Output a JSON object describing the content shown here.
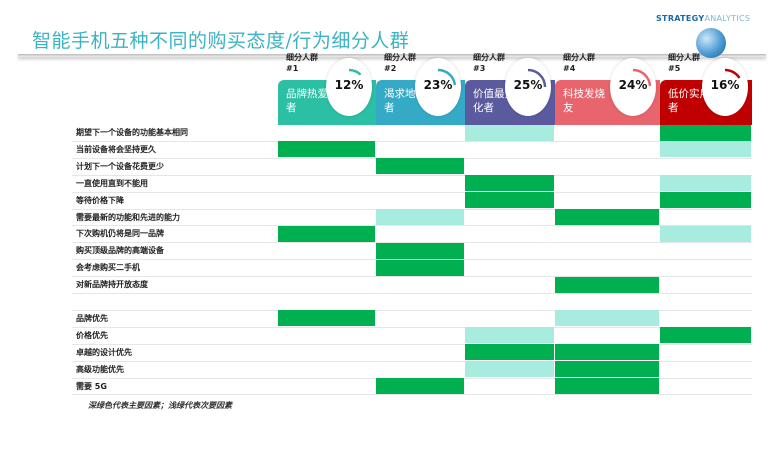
{
  "title": "智能手机五种不同的购买态度/行为细分人群",
  "logo": {
    "part1": "STRATEGY",
    "part2": "ANALYTICS"
  },
  "segments": [
    {
      "label": "细分人群",
      "num": "#1",
      "name": "品牌热爱者",
      "pct": "12%",
      "value": 12,
      "color": "#2bbfa4"
    },
    {
      "label": "细分人群",
      "num": "#2",
      "name": "渴求地位者",
      "pct": "23%",
      "value": 23,
      "color": "#35aac6"
    },
    {
      "label": "细分人群",
      "num": "#3",
      "name": "价值最大化者",
      "pct": "25%",
      "value": 25,
      "color": "#5b5a9f"
    },
    {
      "label": "细分人群",
      "num": "#4",
      "name": "科技发烧友",
      "pct": "24%",
      "value": 24,
      "color": "#e8656d"
    },
    {
      "label": "细分人群",
      "num": "#5",
      "name": "低价实用者",
      "pct": "16%",
      "value": 16,
      "color": "#c00000"
    }
  ],
  "colors": {
    "primary": "#00b050",
    "secondary": "#a8ebdf"
  },
  "rows": [
    {
      "label": "期望下一个设备的功能基本相同",
      "cells": [
        0,
        0,
        1,
        0,
        2
      ]
    },
    {
      "label": "当前设备将会坚持更久",
      "cells": [
        2,
        0,
        0,
        0,
        1
      ]
    },
    {
      "label": "计划下一个设备花费更少",
      "cells": [
        0,
        2,
        0,
        0,
        0
      ]
    },
    {
      "label": "一直使用直到不能用",
      "cells": [
        0,
        0,
        2,
        0,
        1
      ]
    },
    {
      "label": "等待价格下降",
      "cells": [
        0,
        0,
        2,
        0,
        2
      ]
    },
    {
      "label": "需要最新的功能和先进的能力",
      "cells": [
        0,
        1,
        0,
        2,
        0
      ]
    },
    {
      "label": "下次购机仍将是同一品牌",
      "cells": [
        2,
        0,
        0,
        0,
        1
      ]
    },
    {
      "label": "购买顶级品牌的高端设备",
      "cells": [
        0,
        2,
        0,
        0,
        0
      ]
    },
    {
      "label": "会考虑购买二手机",
      "cells": [
        0,
        2,
        0,
        0,
        0
      ]
    },
    {
      "label": "对新品牌持开放态度",
      "cells": [
        0,
        0,
        0,
        2,
        0
      ]
    },
    {
      "label": "",
      "cells": [
        0,
        0,
        0,
        0,
        0
      ]
    },
    {
      "label": "品牌优先",
      "cells": [
        2,
        0,
        0,
        1,
        0
      ]
    },
    {
      "label": "价格优先",
      "cells": [
        0,
        0,
        1,
        0,
        2
      ]
    },
    {
      "label": "卓越的设计优先",
      "cells": [
        0,
        0,
        2,
        2,
        0
      ]
    },
    {
      "label": "高级功能优先",
      "cells": [
        0,
        0,
        1,
        2,
        0
      ]
    },
    {
      "label": "需要 5G",
      "cells": [
        0,
        2,
        0,
        2,
        0
      ]
    }
  ],
  "footnote": "深绿色代表主要因素；浅绿代表次要因素"
}
